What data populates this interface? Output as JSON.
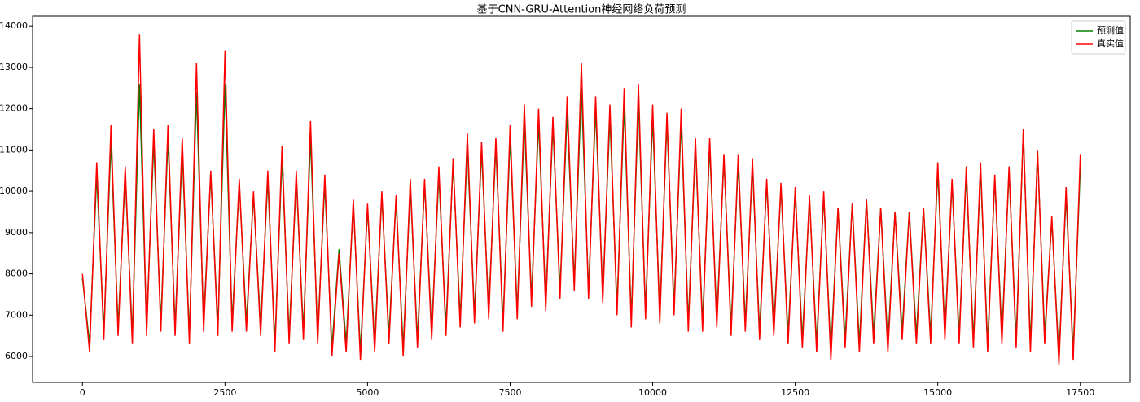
{
  "chart_data": {
    "type": "line",
    "title": "基于CNN-GRU-Attention神经网络负荷预测",
    "x": [
      0,
      125,
      250,
      375,
      500,
      625,
      750,
      875,
      1000,
      1125,
      1250,
      1375,
      1500,
      1625,
      1750,
      1875,
      2000,
      2125,
      2250,
      2375,
      2500,
      2625,
      2750,
      2875,
      3000,
      3125,
      3250,
      3375,
      3500,
      3625,
      3750,
      3875,
      4000,
      4125,
      4250,
      4375,
      4500,
      4625,
      4750,
      4875,
      5000,
      5125,
      5250,
      5375,
      5500,
      5625,
      5750,
      5875,
      6000,
      6125,
      6250,
      6375,
      6500,
      6625,
      6750,
      6875,
      7000,
      7125,
      7250,
      7375,
      7500,
      7625,
      7750,
      7875,
      8000,
      8125,
      8250,
      8375,
      8500,
      8625,
      8750,
      8875,
      9000,
      9125,
      9250,
      9375,
      9500,
      9625,
      9750,
      9875,
      10000,
      10125,
      10250,
      10375,
      10500,
      10625,
      10750,
      10875,
      11000,
      11125,
      11250,
      11375,
      11500,
      11625,
      11750,
      11875,
      12000,
      12125,
      12250,
      12375,
      12500,
      12625,
      12750,
      12875,
      13000,
      13125,
      13250,
      13375,
      13500,
      13625,
      13750,
      13875,
      14000,
      14125,
      14250,
      14375,
      14500,
      14625,
      14750,
      14875,
      15000,
      15125,
      15250,
      15375,
      15500,
      15625,
      15750,
      15875,
      16000,
      16125,
      16250,
      16375,
      16500,
      16625,
      16750,
      16875,
      17000,
      17125,
      17250,
      17375,
      17500
    ],
    "series": [
      {
        "name": "预测值",
        "color": "#008000",
        "values": [
          7900,
          6300,
          10400,
          6600,
          11200,
          6700,
          10400,
          6500,
          12600,
          6700,
          11200,
          6800,
          11300,
          6700,
          11000,
          6500,
          12400,
          6800,
          10400,
          6700,
          12600,
          6800,
          10200,
          6800,
          9900,
          6700,
          10300,
          6300,
          10800,
          6500,
          10300,
          6600,
          11300,
          6500,
          10200,
          6200,
          8600,
          6300,
          9700,
          6100,
          9600,
          6300,
          9900,
          6500,
          9800,
          6200,
          10100,
          6400,
          10200,
          6600,
          10400,
          6700,
          10700,
          6900,
          11100,
          7000,
          11000,
          7100,
          11100,
          6800,
          11300,
          7100,
          11700,
          7400,
          11700,
          7300,
          11600,
          7600,
          11900,
          7800,
          12500,
          7600,
          12000,
          7500,
          11800,
          7200,
          12100,
          6900,
          12200,
          7100,
          11800,
          7000,
          11700,
          7200,
          11700,
          6800,
          11100,
          6800,
          11100,
          6900,
          10800,
          6700,
          10700,
          6800,
          10600,
          6600,
          10200,
          6700,
          10100,
          6500,
          10000,
          6400,
          9800,
          6300,
          9900,
          6100,
          9600,
          6400,
          9700,
          6300,
          9800,
          6500,
          9600,
          6300,
          9500,
          6600,
          9500,
          6500,
          9600,
          6500,
          10500,
          6600,
          10200,
          6500,
          10400,
          6400,
          10500,
          6300,
          10300,
          6500,
          10500,
          6400,
          11400,
          6300,
          10900,
          6500,
          9300,
          6000,
          9900,
          6100,
          10600
        ]
      },
      {
        "name": "真实值",
        "color": "#ff0000",
        "values": [
          8000,
          6100,
          10700,
          6400,
          11600,
          6500,
          10600,
          6300,
          13800,
          6500,
          11500,
          6600,
          11600,
          6500,
          11300,
          6300,
          13100,
          6600,
          10500,
          6500,
          13400,
          6600,
          10300,
          6600,
          10000,
          6500,
          10500,
          6100,
          11100,
          6300,
          10500,
          6400,
          11700,
          6300,
          10400,
          6000,
          8500,
          6100,
          9800,
          5900,
          9700,
          6100,
          10000,
          6300,
          9900,
          6000,
          10300,
          6200,
          10300,
          6400,
          10600,
          6500,
          10800,
          6700,
          11400,
          6800,
          11200,
          6900,
          11300,
          6600,
          11600,
          6900,
          12100,
          7200,
          12000,
          7100,
          11800,
          7400,
          12300,
          7600,
          13100,
          7400,
          12300,
          7300,
          12100,
          7000,
          12500,
          6700,
          12600,
          6900,
          12100,
          6800,
          11900,
          7000,
          12000,
          6600,
          11300,
          6600,
          11300,
          6700,
          10900,
          6500,
          10900,
          6600,
          10800,
          6400,
          10300,
          6500,
          10200,
          6300,
          10100,
          6200,
          9900,
          6100,
          10000,
          5900,
          9600,
          6200,
          9700,
          6100,
          9800,
          6300,
          9600,
          6100,
          9500,
          6400,
          9500,
          6300,
          9600,
          6300,
          10700,
          6400,
          10300,
          6300,
          10600,
          6200,
          10700,
          6100,
          10400,
          6300,
          10600,
          6200,
          11500,
          6100,
          11000,
          6300,
          9400,
          5800,
          10100,
          5900,
          10900
        ]
      }
    ],
    "xlim": [
      -875,
      18375
    ],
    "ylim": [
      5370,
      14240
    ],
    "xticks": [
      0,
      2500,
      5000,
      7500,
      10000,
      12500,
      15000,
      17500
    ],
    "yticks": [
      6000,
      7000,
      8000,
      9000,
      10000,
      11000,
      12000,
      13000,
      14000
    ],
    "legend": "upper right"
  }
}
